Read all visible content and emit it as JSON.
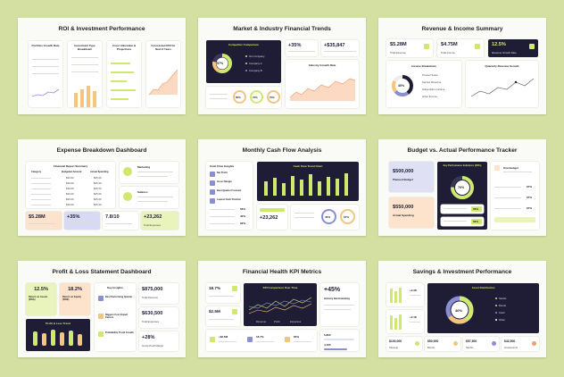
{
  "slides": [
    {
      "title": "ROI & Investment Performance",
      "cols": [
        "Portfolio Growth Rate",
        "Investment Type Breakdown",
        "Asset Allocation & Projections",
        "Forecasted ROI for Next 3 Years"
      ]
    },
    {
      "title": "Market & Industry Financial Trends",
      "dark_title": "Competitor Comparison",
      "donut": "57%",
      "stat1": "+35%",
      "stat2": "+$35,847",
      "chart_title": "Industry Growth Rate",
      "ring1": "60%",
      "ring2": "76%",
      "ring3": "70%",
      "legend": [
        "Our Company",
        "Company A",
        "Company B"
      ]
    },
    {
      "title": "Revenue & Income Summary",
      "kpi1": "$5.28M",
      "kpi1_label": "Total Revenue",
      "kpi2": "$4.75M",
      "kpi2_label": "Total Income",
      "kpi3": "12.5%",
      "kpi3_label": "Revenue Growth Rate",
      "breakdown_title": "Income Breakdown",
      "donut": "40%",
      "breakdown_items": [
        "Product Sales",
        "Service Revenue",
        "Subscription Income",
        "Other Income"
      ],
      "trend_title": "Quarterly Revenue Growth"
    },
    {
      "title": "Expense Breakdown Dashboard",
      "table_title": "Financial Report Summary",
      "headers": [
        "Category",
        "Budgeted Amount",
        "Actual Spending"
      ],
      "rows": [
        [
          "$30.00",
          "$25.00"
        ],
        [
          "$30.00",
          "$25.00"
        ],
        [
          "$30.00",
          "$25.00"
        ],
        [
          "$30.00",
          "$25.00"
        ],
        [
          "$30.00",
          "$25.00"
        ],
        [
          "$30.00",
          "$25.00"
        ]
      ],
      "side1": "Marketing",
      "side2": "Salaries",
      "kpis": [
        "$5.28M",
        "+35%",
        "7.8/10",
        "+23,262"
      ],
      "kpi_last_label": "Total Expenses"
    },
    {
      "title": "Monthly Cash Flow Analysis",
      "insights_title": "Cash Flow Insights",
      "insights": [
        "Net Profit",
        "Gross Margin",
        "Best Quarter Forecast",
        "Lowest Cash Position"
      ],
      "pcts": [
        "56%",
        "40%",
        "62%"
      ],
      "chart_title": "Cash Flow Trend Chart",
      "stat": "+23,262",
      "ring1": "40%",
      "ring2": "67%"
    },
    {
      "title": "Budget vs. Actual Performance Tracker",
      "box1": "$500,000",
      "box1_label": "Planned Budget",
      "box2": "$550,000",
      "box2_label": "Actual Spending",
      "gauge_title": "Key Performance Indicators (KPIs)",
      "gauge": "76%",
      "kpi_pcts": [
        "56%",
        "56%"
      ],
      "right_title": "Overbudget",
      "right_pcts": [
        "67%",
        "67%",
        "67%"
      ]
    },
    {
      "title": "Profit & Loss Statement Dashboard",
      "k1": "12.5%",
      "k1_label": "Return on Assets (ROA)",
      "k2": "18.2%",
      "k2_label": "Return on Equity (ROE)",
      "chart_title": "Profit & Loss Trend",
      "hl_title": "Key Insights",
      "hl": [
        "Best Performing Quarter",
        "Biggest Cost Impact Factors",
        "Profitability Trend Growth"
      ],
      "v1": "$875,000",
      "v1_label": "Total Revenue",
      "v2": "$630,500",
      "v2_label": "Total Expenses",
      "v3": "+28%",
      "v3_label": "Gross Profit Margin"
    },
    {
      "title": "Financial Health KPI Metrics",
      "s1": "18.7%",
      "s2": "$2.5M",
      "chart_title": "KPI Comparison Over Time",
      "big": "+45%",
      "big_label": "Industry Benchmarking",
      "metric": "5,890",
      "metric2": "4,165",
      "bottom": [
        "+$2.5M",
        "18.7%",
        "65%"
      ],
      "legend": [
        "Revenue",
        "Profit",
        "Expenses"
      ]
    },
    {
      "title": "Savings & Investment Performance",
      "left": [
        "+2.3K",
        "+2.1K"
      ],
      "dark_title": "Asset Distribution",
      "donut": "40%",
      "legend": [
        "Stocks",
        "Bonds",
        "Cash",
        "Other"
      ],
      "bottom": [
        "$100,000",
        "$50,000",
        "$57,500",
        "$42,500"
      ],
      "bottom_labels": [
        "Savings",
        "Bonds",
        "Stocks",
        "Investments"
      ]
    }
  ]
}
